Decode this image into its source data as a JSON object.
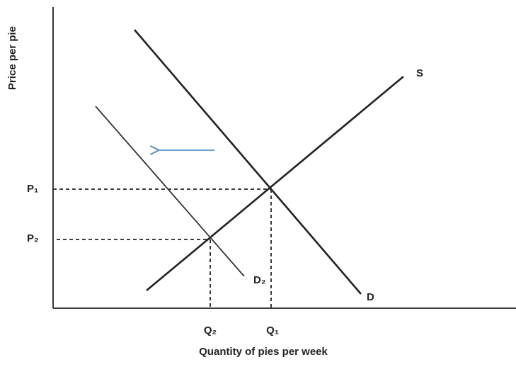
{
  "diagram": {
    "y_axis_label": "Price per pie",
    "x_axis_label": "Quantity of pies per week",
    "curves": {
      "supply": "S",
      "demand": "D",
      "new_demand": "D₂"
    },
    "prices": {
      "p1": "P₁",
      "p2": "P₂"
    },
    "quantities": {
      "q1": "Q₁",
      "q2": "Q₂"
    }
  }
}
